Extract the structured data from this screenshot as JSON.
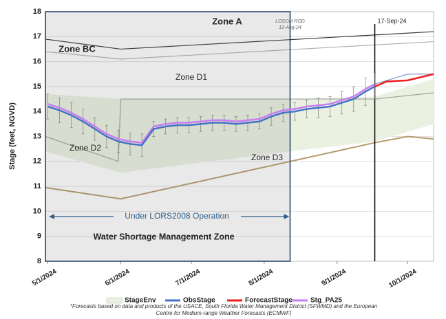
{
  "chart_data": {
    "type": "line",
    "y_label": "Stage (feet, NGVD)",
    "xlim": [
      "2024-04-30",
      "2024-10-12"
    ],
    "xticks": [
      {
        "value": "2024-05-01",
        "label": "5/1/2024"
      },
      {
        "value": "2024-06-01",
        "label": "6/1/2024"
      },
      {
        "value": "2024-07-01",
        "label": "7/1/2024"
      },
      {
        "value": "2024-08-01",
        "label": "8/1/2024"
      },
      {
        "value": "2024-09-01",
        "label": "9/1/2024"
      },
      {
        "value": "2024-10-01",
        "label": "10/1/2024"
      }
    ],
    "ylim": [
      8,
      18
    ],
    "yticks": [
      8,
      9,
      10,
      11,
      12,
      13,
      14,
      15,
      16,
      17,
      18
    ],
    "grid": true,
    "zones": [
      "Zone A",
      "Zone BC",
      "Zone D1",
      "Zone D2",
      "Zone D3"
    ],
    "annotations": [
      "Under LORS2008 Operation",
      "Water Shortage Management Zone"
    ],
    "events": [
      {
        "date": "2024-08-12",
        "label": [
          "LOSOM ROD",
          "12-Aug-24"
        ]
      },
      {
        "date": "2024-09-17",
        "label": [
          "17-Sep-24"
        ]
      }
    ],
    "boundaries": [
      {
        "color": "#333333",
        "x": [
          "2024-04-30",
          "2024-06-01",
          "2024-10-12"
        ],
        "values": [
          16.9,
          16.5,
          17.2
        ]
      },
      {
        "color": "#b0b0b0",
        "x": [
          "2024-04-30",
          "2024-06-01",
          "2024-10-12"
        ],
        "values": [
          16.4,
          16.1,
          16.8
        ]
      },
      {
        "color": "#a0a0a0",
        "x": [
          "2024-04-30",
          "2024-05-31",
          "2024-06-01",
          "2024-09-17",
          "2024-10-12"
        ],
        "values": [
          13.0,
          12.0,
          14.5,
          14.5,
          14.75
        ]
      },
      {
        "color": "#b59a6a",
        "x": [
          "2024-04-30",
          "2024-06-01",
          "2024-08-12",
          "2024-09-17",
          "2024-10-01",
          "2024-10-12"
        ],
        "values": [
          10.95,
          10.5,
          12.0,
          12.75,
          13.0,
          12.9
        ]
      },
      {
        "color": "#7f9fd0",
        "x": [
          "2024-09-17",
          "2024-10-01",
          "2024-10-12"
        ],
        "values": [
          15.1,
          15.5,
          15.5
        ]
      }
    ],
    "series": [
      {
        "name": "StageEnv",
        "color": "#eaf1e0",
        "x": [
          "2024-04-30",
          "2024-06-01",
          "2024-08-12",
          "2024-09-17",
          "2024-10-12"
        ],
        "upper": [
          14.7,
          14.5,
          14.5,
          14.6,
          15.3
        ],
        "lower": [
          12.4,
          11.55,
          12.4,
          12.8,
          13.5
        ]
      },
      {
        "name": "ObsStage",
        "color": "#4472c4",
        "x": [
          "2024-05-01",
          "2024-05-06",
          "2024-05-11",
          "2024-05-16",
          "2024-05-21",
          "2024-05-26",
          "2024-05-31",
          "2024-06-05",
          "2024-06-10",
          "2024-06-15",
          "2024-06-20",
          "2024-06-25",
          "2024-06-30",
          "2024-07-05",
          "2024-07-10",
          "2024-07-15",
          "2024-07-20",
          "2024-07-25",
          "2024-07-30",
          "2024-08-04",
          "2024-08-09",
          "2024-08-14",
          "2024-08-19",
          "2024-08-24",
          "2024-08-29",
          "2024-09-03",
          "2024-09-08",
          "2024-09-13",
          "2024-09-17"
        ],
        "values": [
          14.2,
          14.05,
          13.85,
          13.6,
          13.3,
          13.0,
          12.8,
          12.7,
          12.65,
          13.3,
          13.4,
          13.45,
          13.45,
          13.5,
          13.55,
          13.55,
          13.5,
          13.55,
          13.6,
          13.8,
          13.95,
          14.0,
          14.1,
          14.15,
          14.2,
          14.35,
          14.5,
          14.8,
          15.0
        ],
        "errors": [
          0.5,
          0.5,
          0.5,
          0.5,
          0.45,
          0.45,
          0.45,
          0.45,
          0.45,
          0.3,
          0.3,
          0.3,
          0.3,
          0.3,
          0.3,
          0.3,
          0.3,
          0.3,
          0.3,
          0.35,
          0.35,
          0.35,
          0.35,
          0.4,
          0.4,
          0.45,
          0.5,
          0.55,
          0.55
        ]
      },
      {
        "name": "ForecastStage",
        "color": "#ee1c1c",
        "x": [
          "2024-09-17",
          "2024-09-22",
          "2024-10-01",
          "2024-10-12"
        ],
        "values": [
          15.0,
          15.2,
          15.25,
          15.5
        ]
      },
      {
        "name": "Stg_PA25",
        "color": "#c77cf2",
        "x": [
          "2024-05-01",
          "2024-05-06",
          "2024-05-11",
          "2024-05-16",
          "2024-05-21",
          "2024-05-26",
          "2024-05-31",
          "2024-06-05",
          "2024-06-10",
          "2024-06-15",
          "2024-06-20",
          "2024-06-25",
          "2024-06-30",
          "2024-07-05",
          "2024-07-10",
          "2024-07-15",
          "2024-07-20",
          "2024-07-25",
          "2024-07-30",
          "2024-08-04",
          "2024-08-09",
          "2024-08-14",
          "2024-08-19",
          "2024-08-24",
          "2024-08-29",
          "2024-09-03",
          "2024-09-08",
          "2024-09-13",
          "2024-09-17"
        ],
        "values": [
          14.3,
          14.15,
          13.95,
          13.7,
          13.4,
          13.1,
          12.9,
          12.8,
          12.75,
          13.4,
          13.5,
          13.55,
          13.55,
          13.6,
          13.65,
          13.65,
          13.6,
          13.65,
          13.7,
          13.9,
          14.05,
          14.1,
          14.2,
          14.25,
          14.3,
          14.45,
          14.6,
          14.9,
          15.1
        ]
      }
    ],
    "footnote": "*Forecasts based on data and products of the USACE, South Florida Water Management District (SFWMD) and the European Centre for Medium-range Weather Forecasts (ECMWF)"
  }
}
